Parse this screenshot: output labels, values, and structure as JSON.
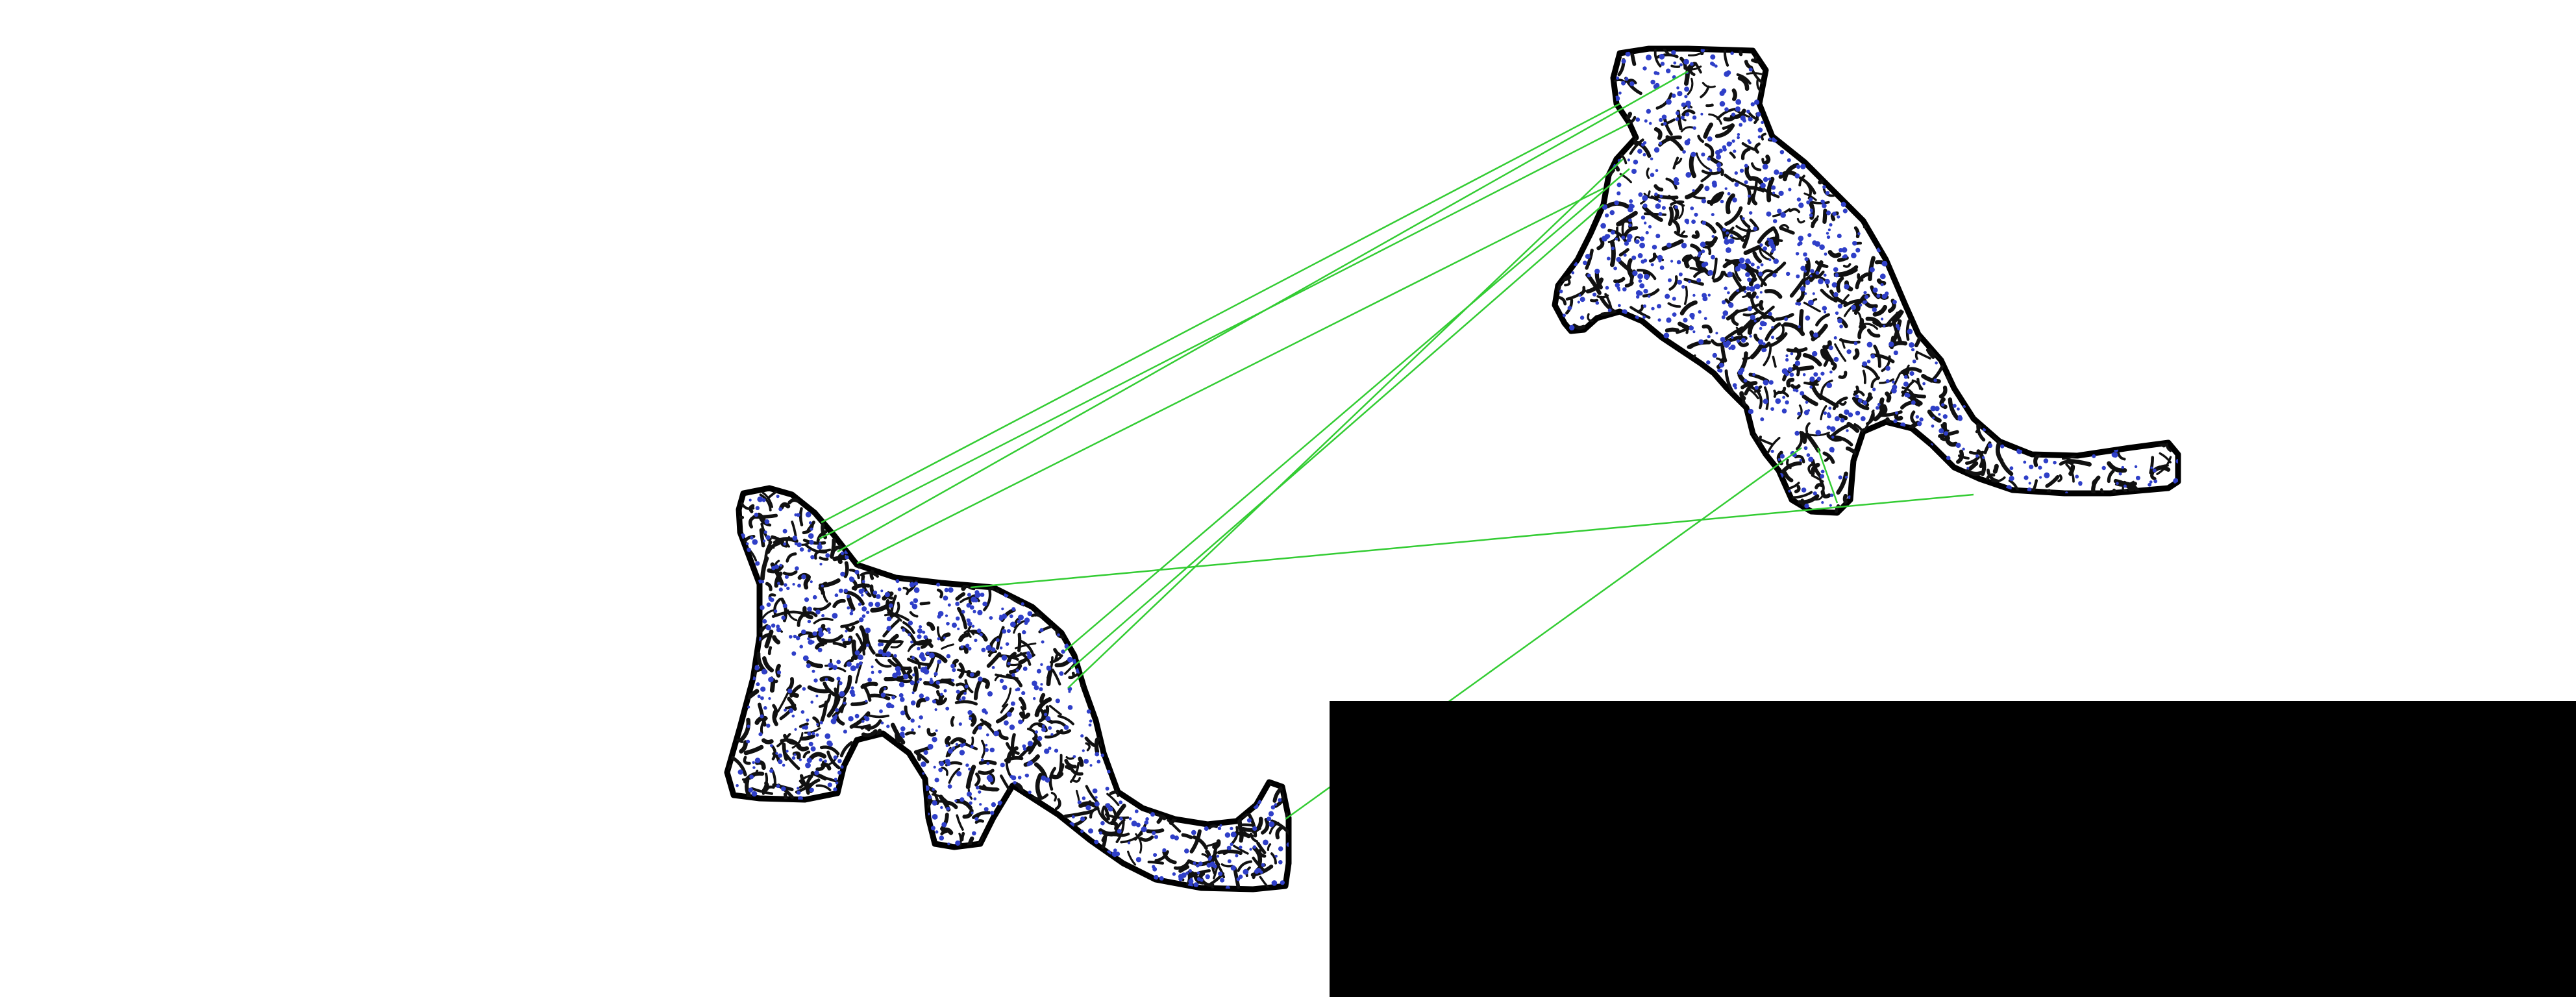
{
  "colors": {
    "background": "#ffffff",
    "outline": "#000000",
    "texture": "#111111",
    "keypoint": "#2f3fc8",
    "match_line": "#33cc33",
    "block": "#000000"
  },
  "shapes": [
    {
      "name": "left-silhouette",
      "mirrored": false
    },
    {
      "name": "right-silhouette",
      "mirrored": true
    }
  ],
  "matches": {
    "count": 10
  },
  "occluder": {
    "visible": true
  }
}
